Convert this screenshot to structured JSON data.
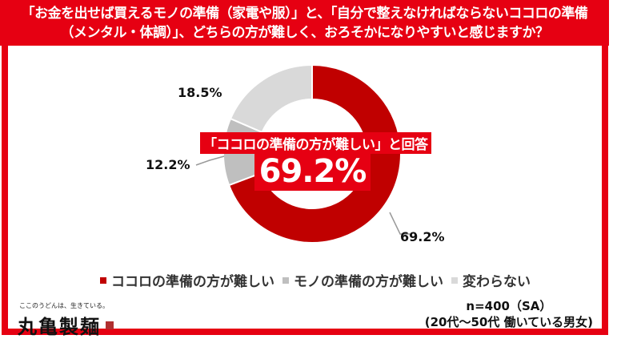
{
  "header": {
    "line1": "「お金を出せば買えるモノの準備（家電や服）」と、「自分で整えなければならないココロの準備",
    "line2": "（メンタル・体調）」、どちらの方が難しく、おろそかになりやすいと感じますか？"
  },
  "callout": {
    "label": "「ココロの準備の方が難しい」と回答",
    "value": "69.2%"
  },
  "slice_labels": {
    "kokoro": "69.2%",
    "mono": "12.2%",
    "kawaranai": "18.5%"
  },
  "legend": [
    {
      "label": "ココロの準備の方が難しい",
      "color": "#c00000"
    },
    {
      "label": "モノの準備の方が難しい",
      "color": "#bfbfbf"
    },
    {
      "label": "変わらない",
      "color": "#d9d9d9"
    }
  ],
  "brand": {
    "tagline": "ここのうどんは、生きている。",
    "name": "丸亀製麺"
  },
  "note": {
    "sample": "n=400（SA）",
    "population": "(20代～50代 働いている男女)"
  },
  "colors": {
    "accent": "#e60012",
    "kokoro": "#c00000",
    "mono": "#bfbfbf",
    "kawaranai": "#d9d9d9"
  },
  "chart_data": {
    "type": "pie",
    "subtype": "donut",
    "title": "「お金を出せば買えるモノの準備（家電や服）」と、「自分で整えなければならないココロの準備（メンタル・体調）」、どちらの方が難しく、おろそかになりやすいと感じますか？",
    "categories": [
      "ココロの準備の方が難しい",
      "モノの準備の方が難しい",
      "変わらない"
    ],
    "values": [
      69.2,
      12.2,
      18.5
    ],
    "unit": "%",
    "colors": [
      "#c00000",
      "#bfbfbf",
      "#d9d9d9"
    ],
    "legend_position": "bottom",
    "annotation": "「ココロの準備の方が難しい」と回答 69.2%",
    "sample_note": "n=400（SA） (20代～50代 働いている男女)"
  }
}
